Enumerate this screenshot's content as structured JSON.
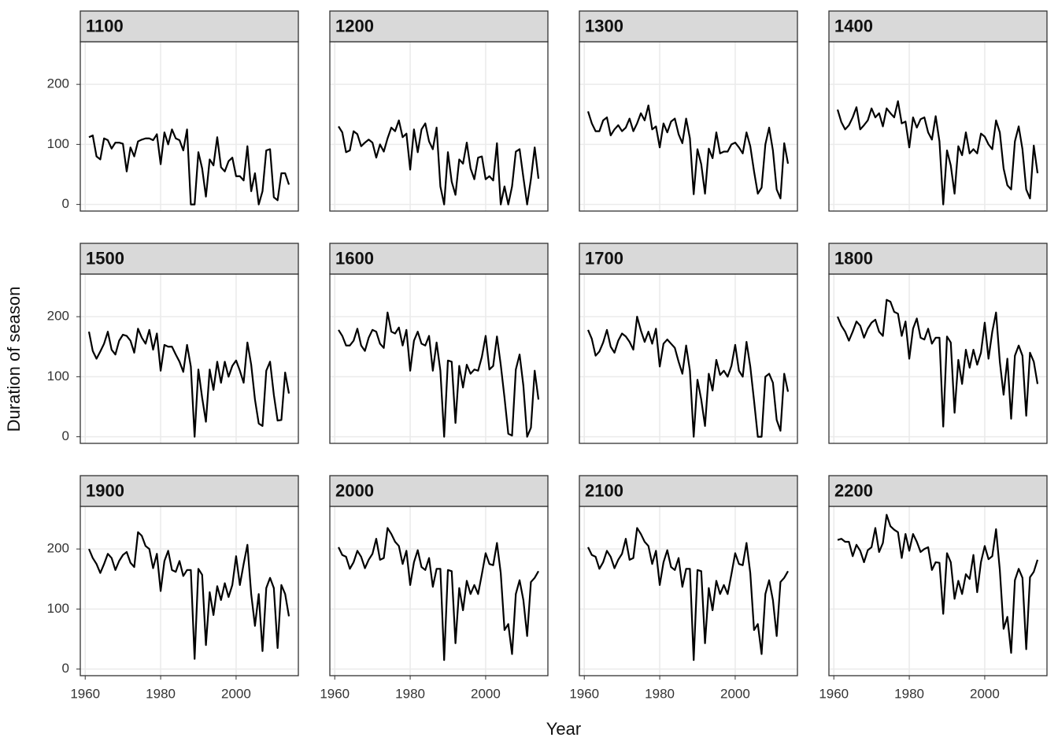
{
  "chart_data": {
    "type": "line",
    "x_label": "Year",
    "y_label": "Duration of season",
    "color": "#000000",
    "grid": true,
    "x": [
      1961,
      1962,
      1963,
      1964,
      1965,
      1966,
      1967,
      1968,
      1969,
      1970,
      1971,
      1972,
      1973,
      1974,
      1975,
      1976,
      1977,
      1978,
      1979,
      1980,
      1981,
      1982,
      1983,
      1984,
      1985,
      1986,
      1987,
      1988,
      1989,
      1990,
      1991,
      1992,
      1993,
      1994,
      1995,
      1996,
      1997,
      1998,
      1999,
      2000,
      2001,
      2002,
      2003,
      2004,
      2005,
      2006,
      2007,
      2008,
      2009,
      2010,
      2011,
      2012,
      2013,
      2014
    ],
    "xlim": [
      1958.7,
      2016.5
    ],
    "ylim": [
      -11,
      271
    ],
    "xticks": [
      1960,
      1980,
      2000
    ],
    "yticks": [
      0,
      100,
      200
    ],
    "panels": [
      {
        "title": "1100",
        "values": [
          112,
          115,
          80,
          75,
          110,
          107,
          93,
          103,
          103,
          101,
          55,
          95,
          80,
          105,
          108,
          110,
          110,
          107,
          117,
          67,
          120,
          100,
          125,
          110,
          107,
          90,
          125,
          0,
          0,
          87,
          60,
          13,
          75,
          65,
          112,
          62,
          55,
          72,
          78,
          47,
          47,
          40,
          97,
          22,
          52,
          0,
          22,
          90,
          92,
          12,
          7,
          52,
          52,
          33
        ]
      },
      {
        "title": "1200",
        "values": [
          130,
          120,
          87,
          90,
          122,
          117,
          97,
          103,
          108,
          103,
          78,
          100,
          88,
          110,
          128,
          122,
          140,
          112,
          118,
          58,
          125,
          87,
          125,
          135,
          105,
          92,
          128,
          30,
          0,
          87,
          38,
          16,
          75,
          68,
          103,
          60,
          42,
          78,
          80,
          42,
          47,
          40,
          102,
          0,
          30,
          0,
          30,
          88,
          92,
          45,
          0,
          42,
          95,
          43
        ]
      },
      {
        "title": "1300",
        "values": [
          155,
          135,
          122,
          122,
          140,
          145,
          115,
          125,
          132,
          122,
          128,
          143,
          122,
          135,
          152,
          140,
          165,
          125,
          130,
          95,
          135,
          120,
          138,
          143,
          117,
          102,
          143,
          110,
          17,
          92,
          67,
          18,
          93,
          77,
          120,
          85,
          88,
          88,
          100,
          103,
          95,
          85,
          120,
          97,
          55,
          18,
          28,
          100,
          128,
          90,
          25,
          10,
          102,
          68
        ]
      },
      {
        "title": "1400",
        "values": [
          158,
          137,
          125,
          132,
          145,
          162,
          125,
          132,
          140,
          160,
          145,
          152,
          130,
          160,
          152,
          145,
          172,
          135,
          138,
          95,
          145,
          128,
          142,
          145,
          120,
          108,
          147,
          105,
          0,
          90,
          65,
          18,
          97,
          82,
          120,
          85,
          92,
          85,
          118,
          113,
          100,
          92,
          140,
          120,
          60,
          32,
          25,
          105,
          130,
          92,
          25,
          10,
          98,
          52
        ]
      },
      {
        "title": "1500",
        "values": [
          175,
          143,
          130,
          142,
          155,
          175,
          145,
          137,
          160,
          170,
          168,
          160,
          140,
          180,
          165,
          155,
          178,
          145,
          172,
          110,
          153,
          150,
          150,
          137,
          125,
          108,
          153,
          117,
          0,
          112,
          65,
          25,
          112,
          78,
          125,
          90,
          125,
          100,
          118,
          127,
          110,
          90,
          157,
          120,
          62,
          22,
          18,
          110,
          125,
          70,
          27,
          28,
          107,
          72
        ]
      },
      {
        "title": "1600",
        "values": [
          178,
          168,
          152,
          152,
          160,
          180,
          152,
          143,
          165,
          178,
          175,
          155,
          148,
          207,
          175,
          172,
          182,
          152,
          178,
          110,
          160,
          175,
          155,
          152,
          168,
          110,
          157,
          110,
          0,
          127,
          125,
          23,
          118,
          82,
          120,
          105,
          112,
          110,
          133,
          168,
          112,
          118,
          167,
          120,
          65,
          5,
          2,
          112,
          137,
          85,
          0,
          15,
          110,
          62
        ]
      },
      {
        "title": "1700",
        "values": [
          178,
          163,
          135,
          142,
          157,
          178,
          150,
          140,
          160,
          172,
          167,
          158,
          145,
          200,
          177,
          158,
          175,
          155,
          180,
          117,
          155,
          162,
          155,
          148,
          125,
          105,
          152,
          110,
          0,
          95,
          62,
          18,
          105,
          77,
          128,
          103,
          110,
          100,
          118,
          153,
          110,
          100,
          158,
          117,
          60,
          0,
          0,
          100,
          105,
          90,
          28,
          10,
          105,
          75
        ]
      },
      {
        "title": "1800",
        "values": [
          200,
          185,
          175,
          160,
          175,
          192,
          185,
          165,
          180,
          190,
          195,
          175,
          168,
          228,
          225,
          208,
          205,
          168,
          192,
          130,
          180,
          197,
          165,
          162,
          180,
          155,
          165,
          165,
          17,
          167,
          157,
          40,
          128,
          88,
          145,
          115,
          145,
          120,
          140,
          190,
          130,
          175,
          207,
          125,
          70,
          130,
          30,
          135,
          152,
          135,
          35,
          140,
          125,
          88
        ]
      },
      {
        "title": "1900",
        "values": [
          200,
          185,
          175,
          160,
          175,
          192,
          185,
          165,
          180,
          190,
          195,
          177,
          170,
          228,
          222,
          205,
          200,
          168,
          192,
          130,
          180,
          197,
          165,
          162,
          180,
          155,
          165,
          165,
          17,
          167,
          157,
          40,
          128,
          90,
          138,
          115,
          143,
          120,
          140,
          188,
          140,
          175,
          207,
          125,
          72,
          125,
          30,
          135,
          152,
          135,
          35,
          140,
          125,
          88
        ]
      },
      {
        "title": "2000",
        "values": [
          203,
          190,
          187,
          167,
          178,
          197,
          187,
          168,
          182,
          192,
          217,
          182,
          185,
          235,
          225,
          212,
          205,
          175,
          197,
          140,
          178,
          198,
          170,
          165,
          185,
          137,
          167,
          167,
          15,
          165,
          163,
          43,
          135,
          98,
          147,
          125,
          140,
          125,
          158,
          193,
          175,
          173,
          210,
          160,
          65,
          75,
          25,
          125,
          148,
          115,
          55,
          145,
          152,
          163
        ]
      },
      {
        "title": "2100",
        "values": [
          203,
          190,
          187,
          167,
          178,
          197,
          187,
          168,
          182,
          192,
          217,
          182,
          185,
          235,
          225,
          212,
          205,
          175,
          197,
          140,
          178,
          198,
          170,
          165,
          185,
          137,
          167,
          167,
          15,
          165,
          163,
          43,
          135,
          98,
          147,
          125,
          140,
          125,
          158,
          193,
          175,
          173,
          210,
          160,
          65,
          75,
          25,
          125,
          148,
          115,
          55,
          145,
          152,
          163
        ]
      },
      {
        "title": "2200",
        "values": [
          215,
          217,
          212,
          212,
          188,
          207,
          197,
          178,
          198,
          203,
          235,
          195,
          210,
          257,
          238,
          232,
          228,
          185,
          225,
          197,
          225,
          212,
          195,
          200,
          203,
          165,
          178,
          177,
          92,
          193,
          178,
          117,
          147,
          125,
          158,
          150,
          190,
          128,
          178,
          205,
          183,
          188,
          233,
          165,
          67,
          87,
          27,
          148,
          167,
          152,
          33,
          153,
          162,
          182
        ]
      }
    ]
  }
}
